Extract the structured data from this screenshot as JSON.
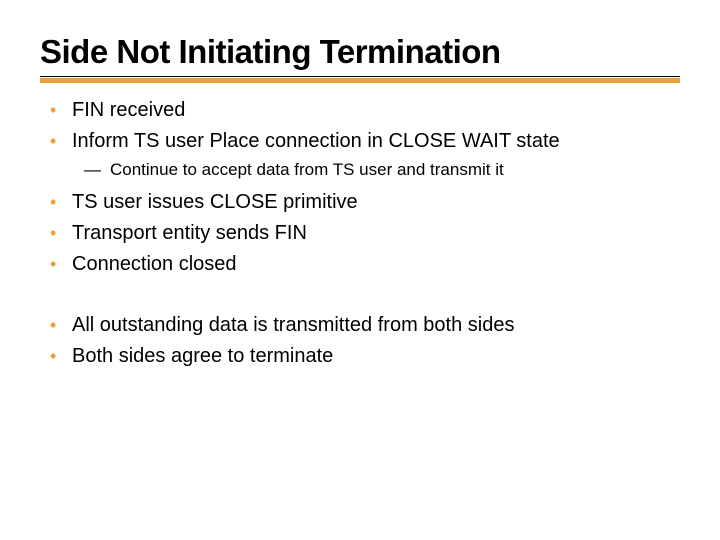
{
  "title": "Side Not Initiating Termination",
  "accent_color": "#e8a33d",
  "text_color": "#000000",
  "bullet_color": "#e8a33d",
  "title_fontsize": 33,
  "l1_fontsize": 20,
  "l2_fontsize": 17,
  "groups": [
    {
      "items": [
        {
          "level": 1,
          "text": "FIN received"
        },
        {
          "level": 1,
          "text": "Inform TS user Place connection in CLOSE WAIT state"
        },
        {
          "level": 2,
          "text": "Continue to accept data from TS user and transmit it"
        },
        {
          "level": 1,
          "text": "TS user issues CLOSE primitive"
        },
        {
          "level": 1,
          "text": "Transport entity sends FIN"
        },
        {
          "level": 1,
          "text": "Connection closed"
        }
      ]
    },
    {
      "items": [
        {
          "level": 1,
          "text": "All outstanding data is transmitted from both sides"
        },
        {
          "level": 1,
          "text": "Both sides agree to terminate"
        }
      ]
    }
  ]
}
